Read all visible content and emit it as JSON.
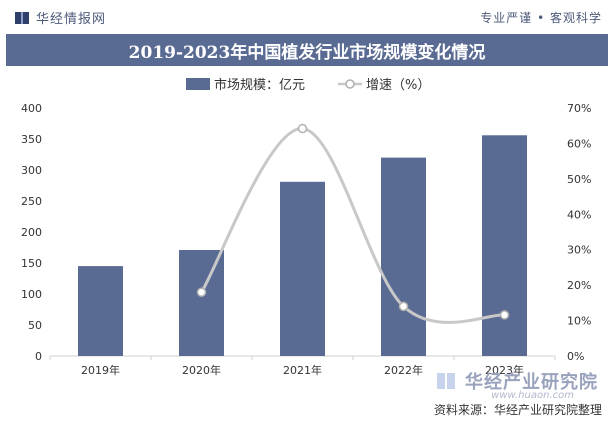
{
  "header": {
    "brand_name": "华经情报网",
    "slogan": "专业严谨 • 客观科学"
  },
  "chart_data": {
    "type": "bar",
    "title": "2019-2023年中国植发行业市场规模变化情况",
    "categories": [
      "2019年",
      "2020年",
      "2021年",
      "2022年",
      "2023年"
    ],
    "series": [
      {
        "name": "市场规模：亿元",
        "kind": "bar",
        "axis": "left",
        "color": "#5a6b93",
        "values": [
          145,
          171,
          281,
          320,
          356
        ]
      },
      {
        "name": "增速（%）",
        "kind": "line",
        "axis": "right",
        "color": "#c8c8c8",
        "values": [
          null,
          18,
          64.2,
          14,
          11.6
        ]
      }
    ],
    "ylim_left": [
      0,
      400
    ],
    "yticks_left": [
      "0",
      "50",
      "100",
      "150",
      "200",
      "250",
      "300",
      "350",
      "400"
    ],
    "ylim_right": [
      0,
      70
    ],
    "yticks_right": [
      "0%",
      "10%",
      "20%",
      "30%",
      "40%",
      "50%",
      "60%",
      "70%"
    ],
    "legend_position": "top-center",
    "grid": false
  },
  "footer": {
    "brand_name": "华经产业研究院",
    "url": "www.huaon.com",
    "source": "资料来源：华经产业研究院整理"
  }
}
